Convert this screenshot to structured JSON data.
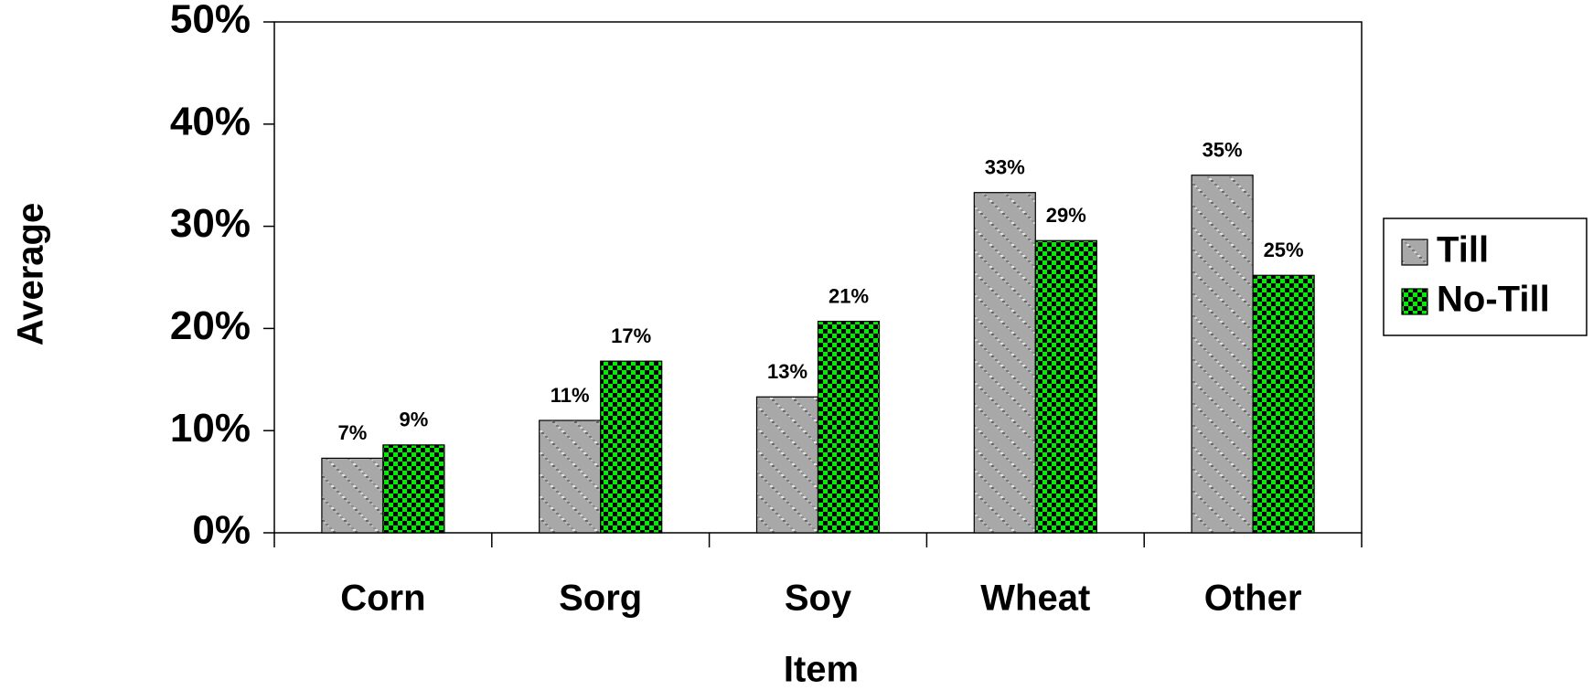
{
  "chart_data": {
    "type": "bar",
    "x_label": "Item",
    "y_label": "Average",
    "categories": [
      "Corn",
      "Sorg",
      "Soy",
      "Wheat",
      "Other"
    ],
    "series": [
      {
        "name": "Till",
        "color": "#a8a8a8",
        "values": [
          7.3,
          11,
          13.3,
          33.3,
          35
        ],
        "value_labels": [
          "7%",
          "11%",
          "13%",
          "33%",
          "35%"
        ]
      },
      {
        "name": "No-Till",
        "color": "#00ee00",
        "values": [
          8.6,
          16.8,
          20.7,
          28.6,
          25.2
        ],
        "value_labels": [
          "9%",
          "17%",
          "21%",
          "29%",
          "25%"
        ]
      }
    ],
    "ylim": [
      0,
      50
    ],
    "yticks": [
      {
        "value": 0,
        "label": "0%"
      },
      {
        "value": 10,
        "label": "10%"
      },
      {
        "value": 20,
        "label": "20%"
      },
      {
        "value": 30,
        "label": "30%"
      },
      {
        "value": 40,
        "label": "40%"
      },
      {
        "value": 50,
        "label": "50%"
      }
    ],
    "legend": "right"
  }
}
